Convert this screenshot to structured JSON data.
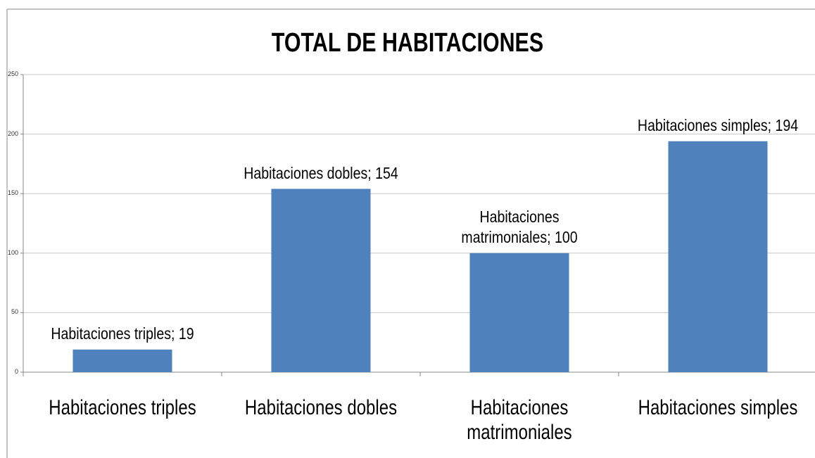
{
  "chart_data": {
    "type": "bar",
    "title": "TOTAL DE HABITACIONES",
    "categories": [
      "Habitaciones triples",
      "Habitaciones dobles",
      "Habitaciones matrimoniales",
      "Habitaciones simples"
    ],
    "values": [
      19,
      154,
      100,
      194
    ],
    "value_labels": [
      "Habitaciones triples; 19",
      "Habitaciones dobles; 154",
      "Habitaciones matrimoniales; 100",
      "Habitaciones simples; 194"
    ],
    "color": "#4f81bd",
    "ylim": [
      0,
      250
    ],
    "yticks": [
      0,
      50,
      100,
      150,
      200,
      250
    ],
    "grid": true
  }
}
